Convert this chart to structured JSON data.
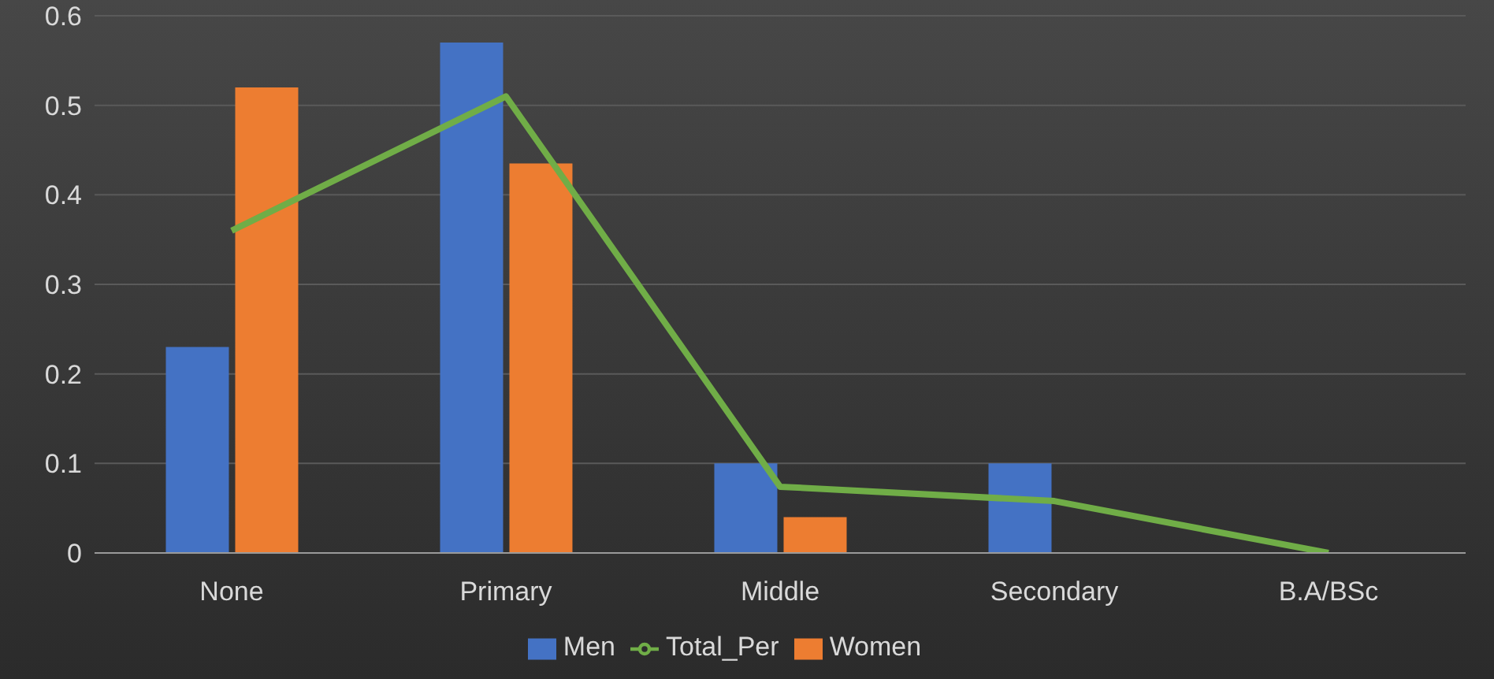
{
  "chart_data": {
    "type": "bar",
    "categories": [
      "None",
      "Primary",
      "Middle",
      "Secondary",
      "B.A/BSc"
    ],
    "series": [
      {
        "name": "Men",
        "color": "#4472c4",
        "values": [
          0.23,
          0.57,
          0.1,
          0.1,
          0
        ]
      },
      {
        "name": "Women",
        "color": "#ed7d31",
        "values": [
          0.52,
          0.435,
          0.04,
          0,
          0
        ]
      },
      {
        "name": "Total_Per",
        "type": "line",
        "color": "#70ad47",
        "values": [
          0.36,
          0.51,
          0.074,
          0.058,
          0
        ]
      }
    ],
    "ylim": [
      0,
      0.6
    ],
    "yticks": [
      0,
      0.1,
      0.2,
      0.3,
      0.4,
      0.5,
      0.6
    ],
    "grid": "y",
    "legend": "bottom",
    "marker": "none"
  }
}
